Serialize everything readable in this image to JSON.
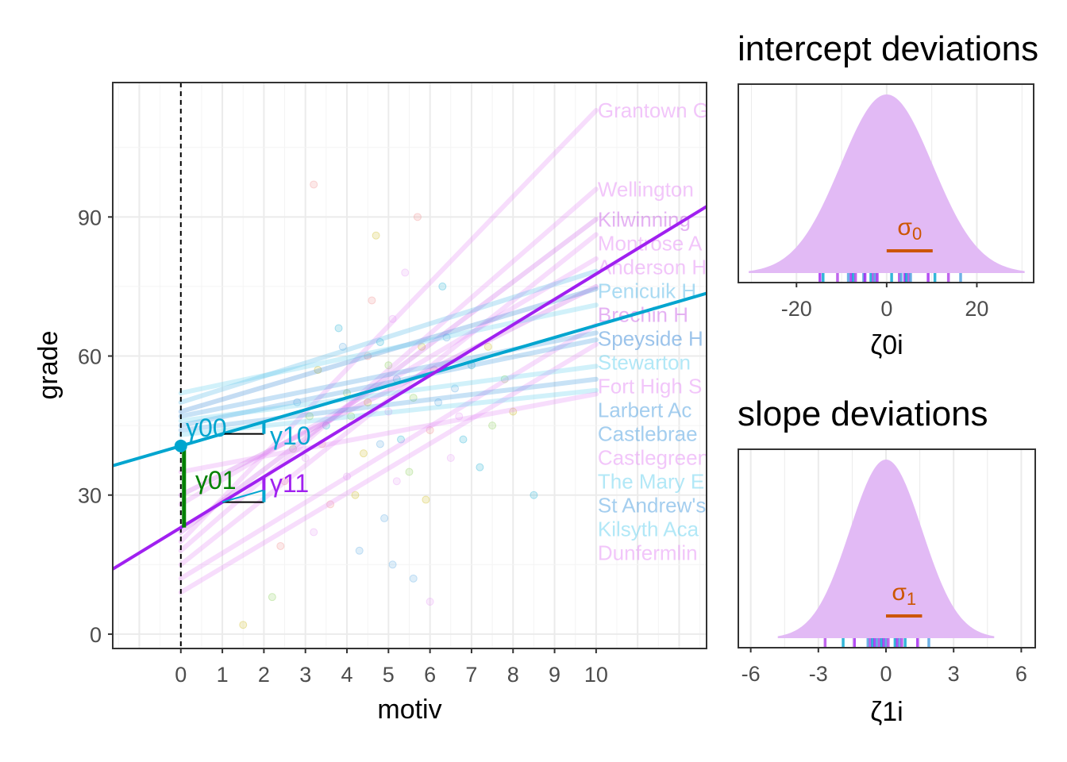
{
  "chart_data": [
    {
      "type": "scatter",
      "xlabel": "motiv",
      "ylabel": "grade",
      "xlim": [
        -1.64,
        12.66
      ],
      "ylim": [
        -3.1,
        119
      ],
      "x_ticks": [
        "0",
        "1",
        "2",
        "3",
        "4",
        "5",
        "6",
        "7",
        "8",
        "9",
        "10"
      ],
      "y_ticks": [
        "0",
        "30",
        "60",
        "90"
      ],
      "grid": true,
      "colors": {
        "within": "#00a5cf",
        "between": "#a020f0",
        "gamma01": "#008000",
        "points_alpha": 0.2
      },
      "fixed_lines": [
        {
          "name": "within",
          "intercept": 40.6,
          "slope": 2.6,
          "color": "#00a5cf"
        },
        {
          "name": "between",
          "intercept": 23.0,
          "slope": 5.47,
          "color": "#a020f0"
        }
      ],
      "annotations": [
        {
          "text": "γ00",
          "color": "#00a5cf"
        },
        {
          "text": "γ10",
          "color": "#00a5cf"
        },
        {
          "text": "γ01",
          "color": "#008000"
        },
        {
          "text": "γ11",
          "color": "#a020f0"
        }
      ],
      "school_lines": [
        {
          "label": "Grantown G",
          "y0": 20,
          "y10": 113,
          "color": "#e58ef5"
        },
        {
          "label": "Wellington",
          "y0": 18,
          "y10": 96,
          "color": "#e58ef5"
        },
        {
          "label": "Kilwinning",
          "y0": 22,
          "y10": 89.5,
          "color": "#cc66e8"
        },
        {
          "label": "Montrose A",
          "y0": 15,
          "y10": 86.2,
          "color": "#e58ef5"
        },
        {
          "label": "Anderson H",
          "y0": 28,
          "y10": 81,
          "color": "#e58ef5"
        },
        {
          "label": "Penicuik H",
          "y0": 50,
          "y10": 78.3,
          "color": "#55b8e8"
        },
        {
          "label": "Brechin H",
          "y0": 30,
          "y10": 75,
          "color": "#cc66e8"
        },
        {
          "label": "Speyside H",
          "y0": 48,
          "y10": 74.5,
          "color": "#3a8ad8"
        },
        {
          "label": "Stewarton",
          "y0": 52,
          "y10": 71,
          "color": "#66d2f0"
        },
        {
          "label": "Fort High S",
          "y0": 12,
          "y10": 66.7,
          "color": "#e58ef5"
        },
        {
          "label": "Larbert Ac",
          "y0": 47,
          "y10": 65,
          "color": "#4a9ee0"
        },
        {
          "label": "Castlebrae",
          "y0": 45,
          "y10": 63.5,
          "color": "#4a9ee0"
        },
        {
          "label": "Castlegreen",
          "y0": 9,
          "y10": 62.5,
          "color": "#e58ef5"
        },
        {
          "label": "The Mary E",
          "y0": 46,
          "y10": 57.8,
          "color": "#66d2f0"
        },
        {
          "label": "St Andrew's",
          "y0": 44,
          "y10": 55,
          "color": "#4a9ee0"
        },
        {
          "label": "Kilsyth Aca",
          "y0": 43,
          "y10": 52.6,
          "color": "#66d2f0"
        },
        {
          "label": "Dunfermlin",
          "y0": 35,
          "y10": 51.8,
          "color": "#e58ef5"
        }
      ],
      "points": [
        [
          3,
          38
        ],
        [
          3.5,
          45
        ],
        [
          4,
          52
        ],
        [
          4.2,
          30
        ],
        [
          4.5,
          60
        ],
        [
          4.8,
          41
        ],
        [
          5,
          48
        ],
        [
          5.2,
          55
        ],
        [
          5.5,
          35
        ],
        [
          5.8,
          62
        ],
        [
          6,
          44
        ],
        [
          6.2,
          50
        ],
        [
          6.5,
          38
        ],
        [
          7,
          58
        ],
        [
          7.5,
          45
        ],
        [
          8,
          48
        ],
        [
          2.5,
          33
        ],
        [
          2.8,
          50
        ],
        [
          3.2,
          22
        ],
        [
          3.8,
          66
        ],
        [
          4.1,
          47
        ],
        [
          4.4,
          39
        ],
        [
          4.6,
          72
        ],
        [
          4.9,
          25
        ],
        [
          5.1,
          68
        ],
        [
          5.3,
          42
        ],
        [
          5.6,
          51
        ],
        [
          5.9,
          29
        ],
        [
          6.1,
          57
        ],
        [
          6.4,
          64
        ],
        [
          6.7,
          47
        ],
        [
          7.2,
          36
        ],
        [
          7.8,
          55
        ],
        [
          3.3,
          57
        ],
        [
          3.6,
          28
        ],
        [
          4.3,
          18
        ],
        [
          5.4,
          78
        ],
        [
          6.3,
          75
        ],
        [
          2.2,
          8
        ],
        [
          1.5,
          2
        ],
        [
          3.2,
          97
        ],
        [
          5.1,
          15
        ],
        [
          6,
          7
        ],
        [
          8.5,
          30
        ],
        [
          2.7,
          40
        ],
        [
          4.7,
          86
        ],
        [
          5.7,
          90
        ],
        [
          3.9,
          62
        ],
        [
          4.0,
          34
        ],
        [
          6.8,
          42
        ],
        [
          5.0,
          58
        ],
        [
          4.5,
          50
        ],
        [
          3.4,
          41
        ],
        [
          6.6,
          53
        ],
        [
          5.2,
          33
        ],
        [
          4.8,
          63
        ],
        [
          3.1,
          47
        ],
        [
          7.4,
          62
        ],
        [
          2.4,
          19
        ],
        [
          5.6,
          12
        ]
      ]
    },
    {
      "type": "area",
      "title": "intercept deviations",
      "xlabel": "ζ0i",
      "xlim": [
        -32.9,
        32.6
      ],
      "x_ticks": [
        -20,
        0,
        20
      ],
      "sd": 10.2,
      "sigma_label": "σ0",
      "fill": "#e2baf5",
      "sigma_color": "#cc5500",
      "rug": [
        -14.8,
        -14.1,
        -10.9,
        -8.5,
        -7.9,
        -7.4,
        -6.9,
        -5.1,
        -4.8,
        -3.5,
        -3.0,
        -2.6,
        -2.1,
        1.1,
        2.8,
        3.2,
        4.0,
        4.4,
        4.9,
        5.3,
        9.2,
        10.7,
        13.7,
        16.4
      ]
    },
    {
      "type": "area",
      "title": "slope deviations",
      "xlabel": "ζ1i",
      "xlim": [
        -6.55,
        6.62
      ],
      "x_ticks": [
        -6,
        -3,
        0,
        3,
        6
      ],
      "sd": 1.6,
      "sigma_label": "σ1",
      "fill": "#e2baf5",
      "sigma_color": "#cc5500",
      "rug": [
        -2.7,
        -1.9,
        -1.4,
        -0.8,
        -0.7,
        -0.6,
        -0.5,
        -0.4,
        -0.3,
        -0.2,
        -0.1,
        0.0,
        0.1,
        0.4,
        0.5,
        0.6,
        0.7,
        0.85,
        1.4,
        1.9
      ]
    }
  ]
}
